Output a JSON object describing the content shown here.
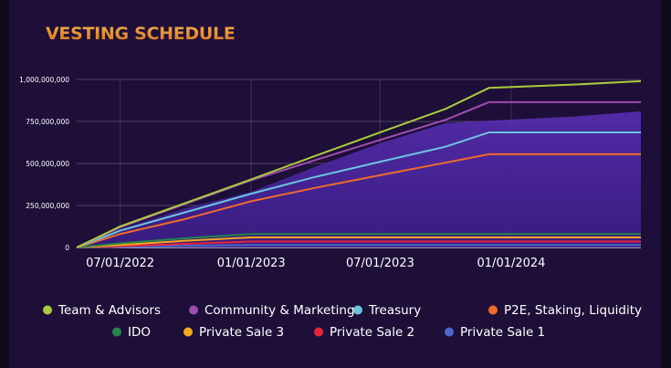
{
  "title": "VESTING SCHEDULE",
  "chart_data": {
    "type": "line",
    "title": "VESTING SCHEDULE",
    "xlabel": "",
    "ylabel": "",
    "x_ticks": [
      "07/01/2022",
      "01/01/2023",
      "07/01/2023",
      "01/01/2024"
    ],
    "x": [
      "2022-05-01",
      "2022-07-01",
      "2022-10-01",
      "2023-01-01",
      "2023-04-01",
      "2023-07-01",
      "2023-10-01",
      "2023-12-01",
      "2024-04-01",
      "2024-07-01"
    ],
    "ylim": [
      0,
      1000000000
    ],
    "y_ticks": [
      "0",
      "250,000,000",
      "500,000,000",
      "750,000,000",
      "1,000,000,000"
    ],
    "xlim": [
      "2022-05-01",
      "2024-07-01"
    ],
    "grid": true,
    "legend_position": "bottom",
    "series": [
      {
        "name": "Team & Advisors",
        "color": "#a8cc3c",
        "values": [
          0,
          125000000,
          265000000,
          405000000,
          545000000,
          685000000,
          825000000,
          950000000,
          970000000,
          990000000
        ]
      },
      {
        "name": "Community & Marketing",
        "color": "#a04bb0",
        "values": [
          0,
          120000000,
          260000000,
          400000000,
          520000000,
          640000000,
          760000000,
          865000000,
          865000000,
          865000000
        ]
      },
      {
        "name": "Treasury",
        "color": "#6cc3de",
        "values": [
          0,
          100000000,
          210000000,
          320000000,
          420000000,
          510000000,
          600000000,
          685000000,
          685000000,
          685000000
        ]
      },
      {
        "name": "P2E, Staking, Liquidity",
        "color": "#f06a2c",
        "values": [
          0,
          80000000,
          170000000,
          275000000,
          355000000,
          430000000,
          505000000,
          555000000,
          555000000,
          555000000
        ]
      },
      {
        "name": "IDO",
        "color": "#22864a",
        "values": [
          0,
          25000000,
          55000000,
          80000000,
          80000000,
          80000000,
          80000000,
          80000000,
          80000000,
          80000000
        ]
      },
      {
        "name": "Private Sale 3",
        "color": "#f2a91e",
        "values": [
          0,
          15000000,
          40000000,
          60000000,
          60000000,
          60000000,
          60000000,
          60000000,
          60000000,
          60000000
        ]
      },
      {
        "name": "Private Sale 2",
        "color": "#e8233a",
        "values": [
          0,
          8000000,
          22000000,
          35000000,
          35000000,
          35000000,
          35000000,
          35000000,
          35000000,
          35000000
        ]
      },
      {
        "name": "Private Sale 1",
        "color": "#4a68c8",
        "values": [
          0,
          4000000,
          10000000,
          15000000,
          15000000,
          15000000,
          15000000,
          15000000,
          15000000,
          15000000
        ]
      }
    ]
  }
}
